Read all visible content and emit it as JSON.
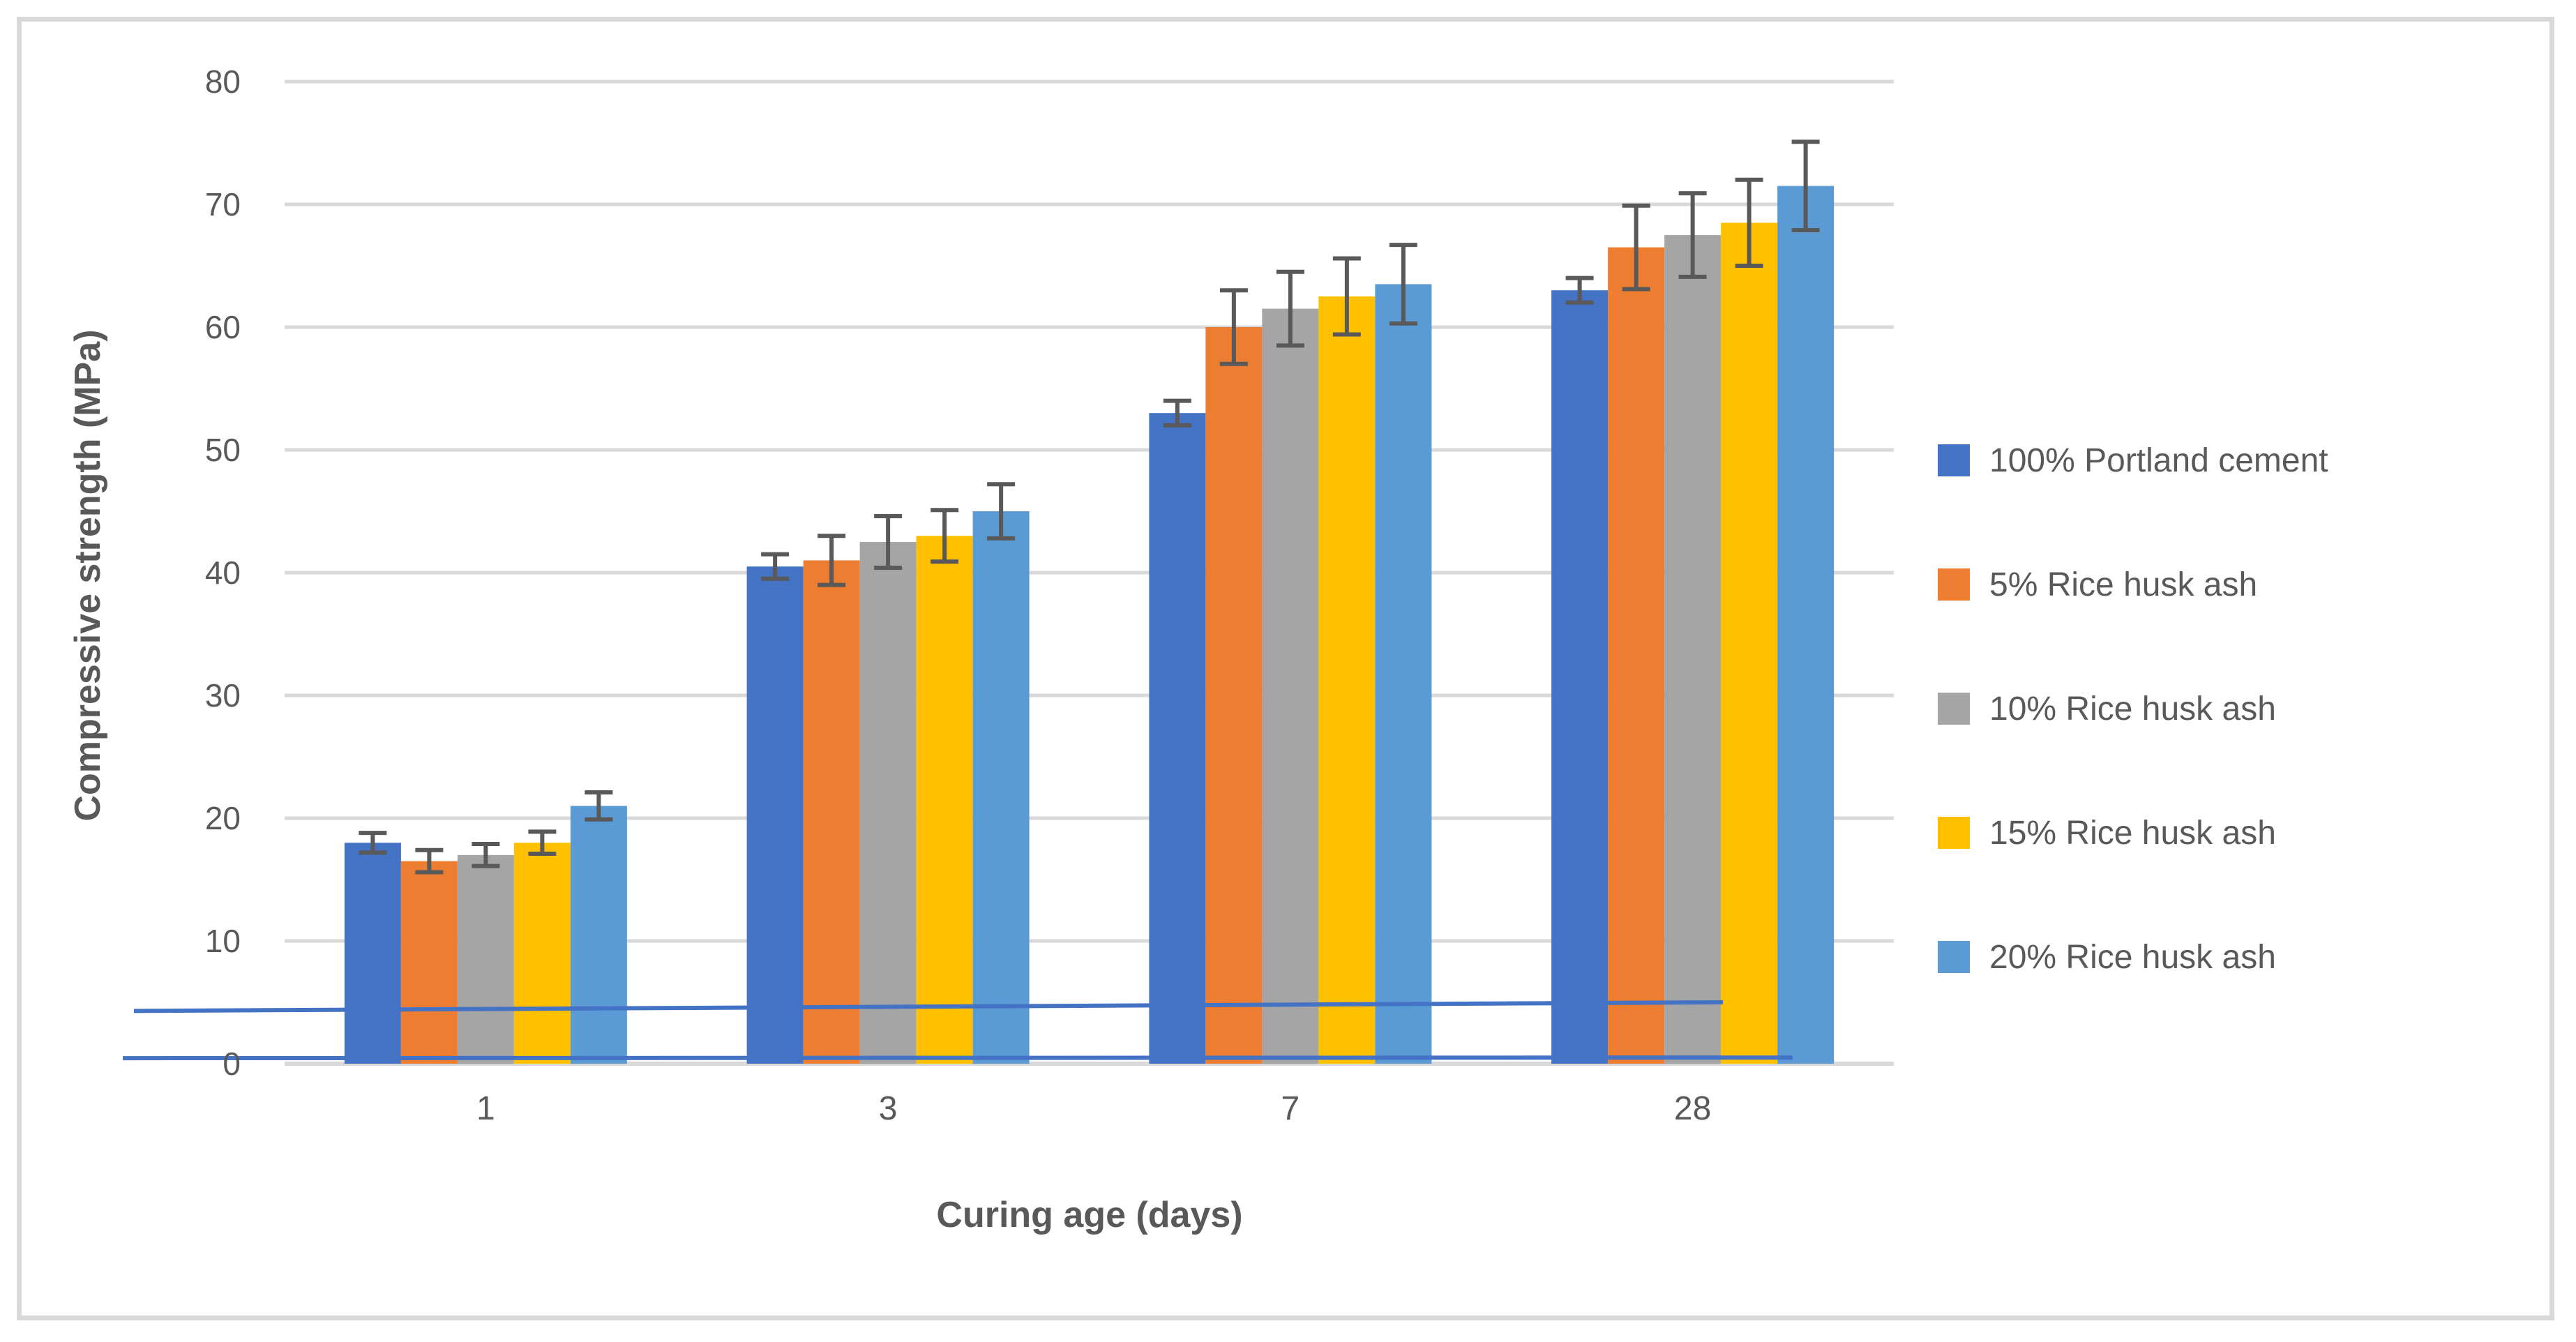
{
  "figure": {
    "background": "#FFFFFF",
    "border_color": "#D9D9D9"
  },
  "chart_data": {
    "type": "bar",
    "title": "",
    "xlabel": "Curing age (days)",
    "ylabel": "Compressive strength (MPa)",
    "categories": [
      "1",
      "3",
      "7",
      "28"
    ],
    "ylim": [
      0,
      80
    ],
    "ytick_step": 10,
    "yticks": [
      "0",
      "10",
      "20",
      "30",
      "40",
      "50",
      "60",
      "70",
      "80"
    ],
    "grid": true,
    "legend_position": "right",
    "gridline_color": "#D9D9D9",
    "error_bar_color": "#595959",
    "text_color": "#595959",
    "series": [
      {
        "name": "100% Portland cement",
        "color": "#4472C4",
        "values": [
          18,
          40.5,
          53,
          63
        ],
        "errors": [
          0.8,
          1.0,
          1.0,
          1.0
        ]
      },
      {
        "name": "5% Rice husk ash",
        "color": "#ED7D31",
        "values": [
          16.5,
          41,
          60,
          66.5
        ],
        "errors": [
          0.9,
          2.0,
          3.0,
          3.4
        ]
      },
      {
        "name": "10% Rice husk ash",
        "color": "#A5A5A5",
        "values": [
          17,
          42.5,
          61.5,
          67.5
        ],
        "errors": [
          0.9,
          2.1,
          3.0,
          3.4
        ]
      },
      {
        "name": "15% Rice husk ash",
        "color": "#FFC000",
        "values": [
          18,
          43,
          62.5,
          68.5
        ],
        "errors": [
          0.9,
          2.1,
          3.1,
          3.5
        ]
      },
      {
        "name": "20% Rice husk ash",
        "color": "#5B9BD5",
        "values": [
          21,
          45,
          63.5,
          71.5
        ],
        "errors": [
          1.1,
          2.2,
          3.2,
          3.6
        ]
      }
    ],
    "overlay_lines": [
      {
        "name": "stray-line-upper",
        "color": "#4472C4",
        "x_start": 192,
        "x_end": 2470,
        "value_start": 4.3,
        "value_end": 5.0
      },
      {
        "name": "stray-line-lower",
        "color": "#4472C4",
        "x_start": 176,
        "x_end": 2570,
        "value_start": 0.45,
        "value_end": 0.5
      }
    ]
  }
}
